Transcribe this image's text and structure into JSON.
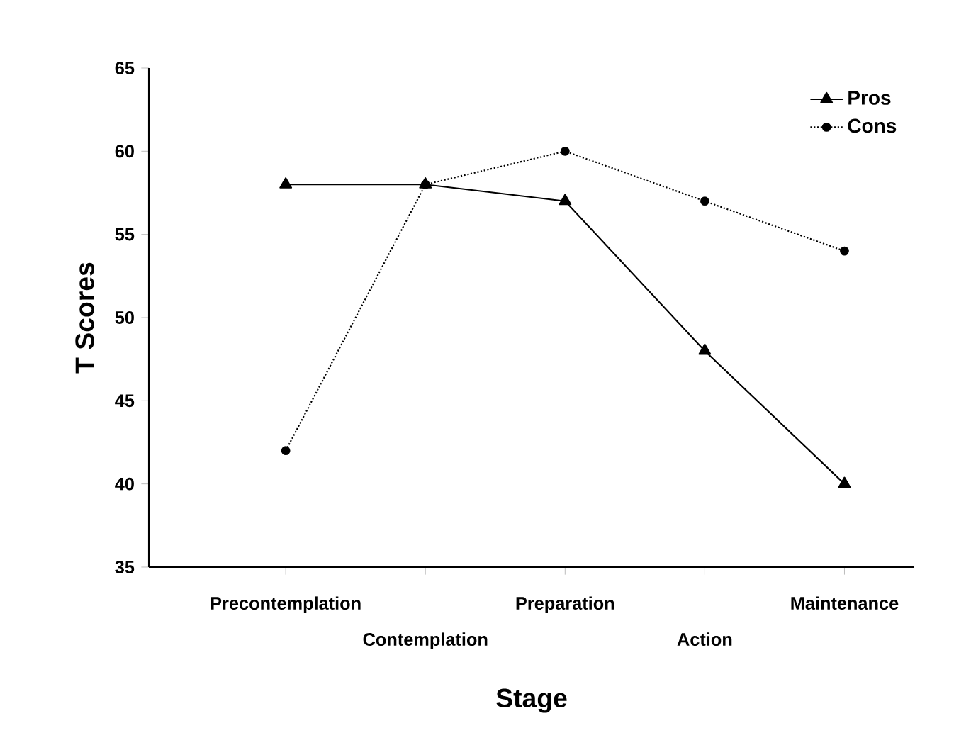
{
  "chart_data": {
    "type": "line",
    "xlabel": "Stage",
    "ylabel": "T Scores",
    "categories": [
      "Precontemplation",
      "Contemplation",
      "Preparation",
      "Action",
      "Maintenance"
    ],
    "ylim": [
      35,
      65
    ],
    "yticks": [
      35,
      40,
      45,
      50,
      55,
      60,
      65
    ],
    "legend": "top right",
    "series": [
      {
        "name": "Pros",
        "color": "#000000",
        "marker": "triangle",
        "line_style": "solid",
        "values": [
          58,
          58,
          57,
          48,
          40
        ]
      },
      {
        "name": "Cons",
        "color": "#000000",
        "marker": "circle",
        "line_style": "dotted",
        "values": [
          42,
          58,
          60,
          57,
          54
        ]
      }
    ]
  }
}
